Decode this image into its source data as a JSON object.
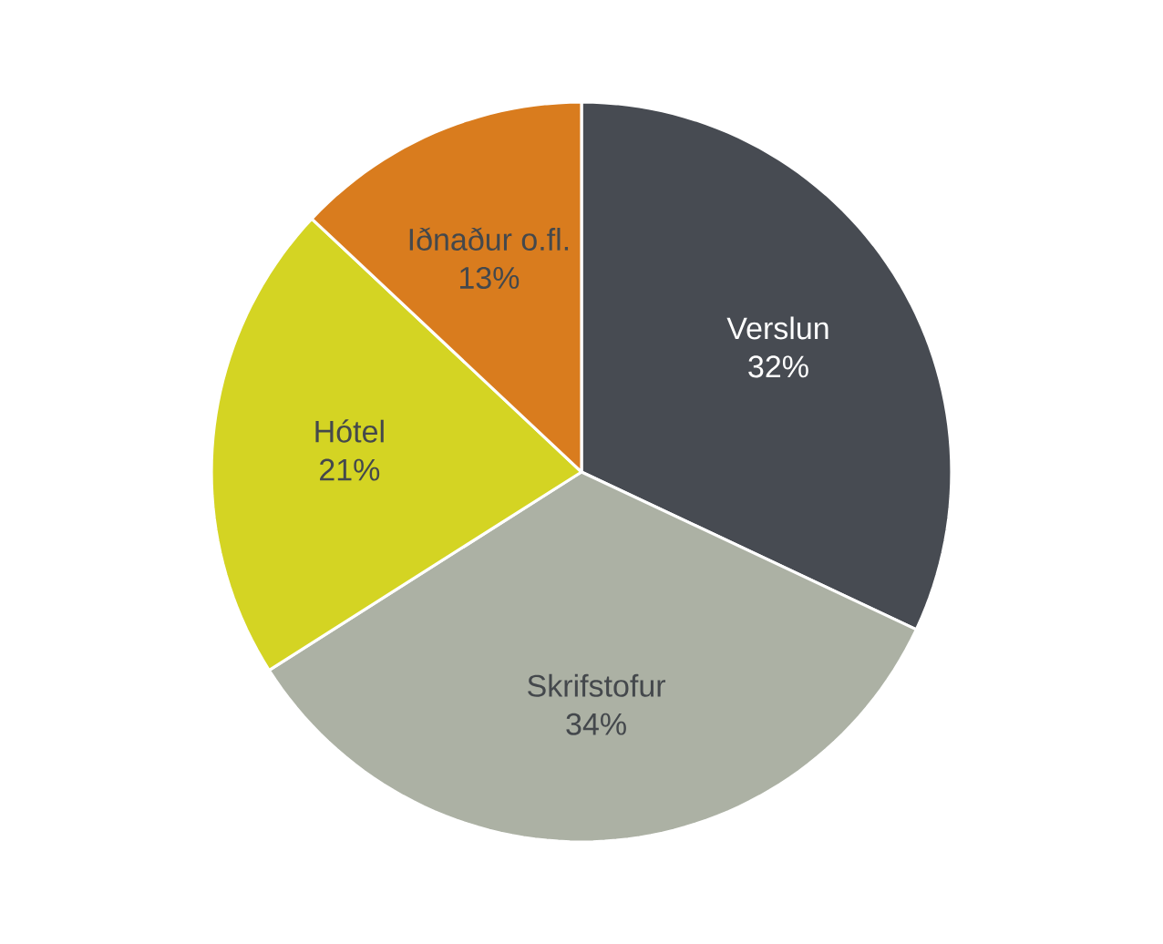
{
  "chart_data": {
    "type": "pie",
    "categories": [
      "Verslun",
      "Skrifstofur",
      "Hótel",
      "Iðnaður o.fl."
    ],
    "values": [
      32,
      34,
      21,
      13
    ],
    "colors": [
      "#474b52",
      "#acb1a4",
      "#d4d423",
      "#d97c1e"
    ],
    "value_labels": [
      "32%",
      "34%",
      "21%",
      "13%"
    ]
  }
}
